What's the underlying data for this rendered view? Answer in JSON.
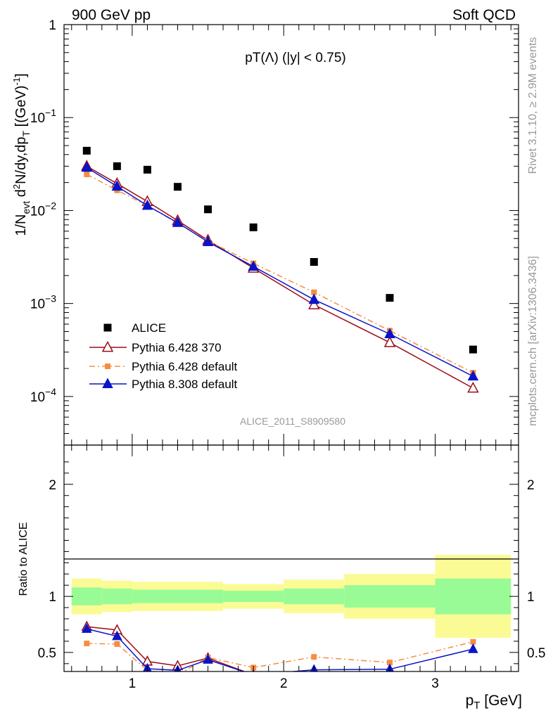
{
  "header": {
    "left": "900 GeV pp",
    "right": "Soft QCD"
  },
  "side_labels": {
    "rivet": "Rivet 3.1.10, ≥ 2.9M events",
    "mcplots": "mcplots.cern.ch [arXiv:1306.3436]"
  },
  "plot_title": "pT(Λ) (|y| < 0.75)",
  "watermark": "ALICE_2011_S8909580",
  "chart_data": [
    {
      "type": "scatter",
      "title": "pT(Λ) (|y| < 0.75)",
      "xlabel": "p_T [GeV]",
      "ylabel": "1/N_evt d²N/dy,dp_T [(GeV)⁻¹]",
      "yscale": "log",
      "xlim": [
        0.55,
        3.55
      ],
      "ylim": [
        3e-05,
        1.0
      ],
      "yticks": [
        {
          "v": 0.0001,
          "base": "10",
          "exp": "−4"
        },
        {
          "v": 0.001,
          "base": "10",
          "exp": "−3"
        },
        {
          "v": 0.01,
          "base": "10",
          "exp": "−2"
        },
        {
          "v": 0.1,
          "base": "10",
          "exp": "−1"
        },
        {
          "v": 1,
          "base": "1",
          "exp": ""
        }
      ],
      "x": [
        0.7,
        0.9,
        1.1,
        1.3,
        1.5,
        1.8,
        2.2,
        2.7,
        3.25
      ],
      "series": [
        {
          "name": "ALICE",
          "color": "#000000",
          "marker": "square",
          "line": "none",
          "values": [
            0.044,
            0.03,
            0.0275,
            0.018,
            0.0103,
            0.0066,
            0.0028,
            0.00115,
            0.00032
          ]
        },
        {
          "name": "Pythia 6.428 370",
          "color": "#9b0c18",
          "marker": "triangle-open",
          "line": "solid",
          "values": [
            0.03,
            0.0195,
            0.0125,
            0.0078,
            0.0048,
            0.0024,
            0.00097,
            0.00038,
            0.000123
          ]
        },
        {
          "name": "Pythia 6.428 default",
          "color": "#f58d42",
          "marker": "square-small",
          "line": "dashdot",
          "values": [
            0.0245,
            0.0165,
            0.0113,
            0.0073,
            0.0047,
            0.0027,
            0.00132,
            0.00051,
            0.00018
          ]
        },
        {
          "name": "Pythia 8.308 default",
          "color": "#0a14c8",
          "marker": "triangle-filled",
          "line": "solid",
          "values": [
            0.029,
            0.0182,
            0.0113,
            0.0074,
            0.0046,
            0.0025,
            0.0011,
            0.00047,
            0.000165
          ]
        }
      ],
      "legend_position": "bottom-left"
    },
    {
      "type": "line",
      "ylabel": "Ratio to ALICE",
      "xlabel": "p_T [GeV]",
      "xlim": [
        0.55,
        3.55
      ],
      "ylim": [
        0.33,
        2.35
      ],
      "yticks": [
        0.5,
        1,
        2
      ],
      "xticks": [
        1,
        2,
        3
      ],
      "bands": [
        {
          "x0": 0.6,
          "x1": 0.8,
          "inner": [
            0.92,
            1.08
          ],
          "outer": [
            0.84,
            1.16
          ]
        },
        {
          "x0": 0.8,
          "x1": 1.0,
          "inner": [
            0.93,
            1.07
          ],
          "outer": [
            0.86,
            1.14
          ]
        },
        {
          "x0": 1.0,
          "x1": 1.2,
          "inner": [
            0.94,
            1.06
          ],
          "outer": [
            0.87,
            1.13
          ]
        },
        {
          "x0": 1.2,
          "x1": 1.4,
          "inner": [
            0.94,
            1.06
          ],
          "outer": [
            0.87,
            1.13
          ]
        },
        {
          "x0": 1.4,
          "x1": 1.6,
          "inner": [
            0.94,
            1.06
          ],
          "outer": [
            0.87,
            1.13
          ]
        },
        {
          "x0": 1.6,
          "x1": 2.0,
          "inner": [
            0.95,
            1.05
          ],
          "outer": [
            0.89,
            1.11
          ]
        },
        {
          "x0": 2.0,
          "x1": 2.4,
          "inner": [
            0.93,
            1.07
          ],
          "outer": [
            0.85,
            1.15
          ]
        },
        {
          "x0": 2.4,
          "x1": 3.0,
          "inner": [
            0.9,
            1.1
          ],
          "outer": [
            0.8,
            1.2
          ]
        },
        {
          "x0": 3.0,
          "x1": 3.5,
          "inner": [
            0.84,
            1.16
          ],
          "outer": [
            0.63,
            1.37
          ]
        }
      ],
      "x": [
        0.7,
        0.9,
        1.1,
        1.3,
        1.5,
        1.8,
        2.2,
        2.7,
        3.25
      ],
      "series": [
        {
          "name": "Pythia 6.428 370",
          "color": "#9b0c18",
          "marker": "triangle-open",
          "line": "solid",
          "values": [
            0.73,
            0.7,
            0.42,
            0.38,
            0.45,
            0.3,
            0.29,
            0.3,
            null
          ]
        },
        {
          "name": "Pythia 6.428 default",
          "color": "#f58d42",
          "marker": "square-small",
          "line": "dashdot",
          "values": [
            0.58,
            0.575,
            0.34,
            0.3,
            0.455,
            0.365,
            0.46,
            0.41,
            0.595
          ]
        },
        {
          "name": "Pythia 8.308 default",
          "color": "#0a14c8",
          "marker": "triangle-filled",
          "line": "solid",
          "values": [
            0.71,
            0.645,
            0.355,
            0.34,
            0.435,
            0.3,
            0.345,
            0.35,
            0.53
          ]
        }
      ]
    }
  ]
}
